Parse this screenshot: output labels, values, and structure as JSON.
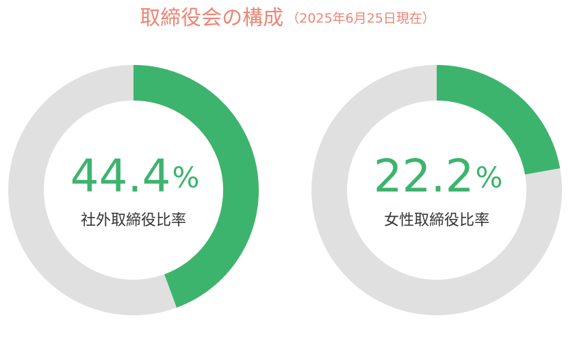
{
  "title": "取締役会の構成",
  "subtitle": "（2025年6月25日現在）",
  "chart_data": [
    {
      "type": "donut",
      "value": 44.4,
      "unit": "%",
      "label": "社外取締役比率",
      "color": "#3db46d",
      "track_color": "#e0e0e0"
    },
    {
      "type": "donut",
      "value": 22.2,
      "unit": "%",
      "label": "女性取締役比率",
      "color": "#3db46d",
      "track_color": "#e0e0e0"
    }
  ]
}
